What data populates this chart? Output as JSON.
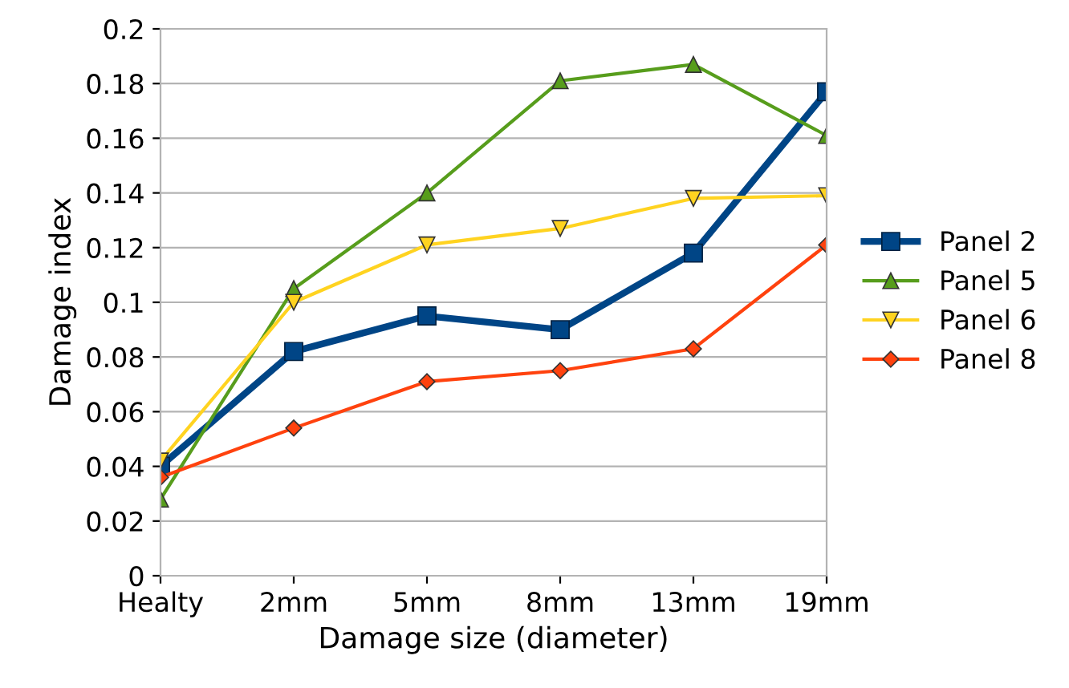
{
  "chart_data": {
    "type": "line",
    "xlabel": "Damage size (diameter)",
    "ylabel": "Damage index",
    "categories": [
      "Healty",
      "2mm",
      "5mm",
      "8mm",
      "13mm",
      "19mm"
    ],
    "series": [
      {
        "name": "Panel 2",
        "color": "#004586",
        "marker": "square",
        "values": [
          0.04,
          0.082,
          0.095,
          0.09,
          0.118,
          0.177
        ]
      },
      {
        "name": "Panel 5",
        "color": "#579d1c",
        "marker": "triangle",
        "values": [
          0.028,
          0.105,
          0.14,
          0.181,
          0.187,
          0.161
        ]
      },
      {
        "name": "Panel 6",
        "color": "#ffd320",
        "marker": "triangle_down",
        "values": [
          0.042,
          0.1,
          0.121,
          0.127,
          0.138,
          0.139
        ]
      },
      {
        "name": "Panel 8",
        "color": "#ff420e",
        "marker": "diamond",
        "values": [
          0.036,
          0.054,
          0.071,
          0.075,
          0.083,
          0.121
        ]
      }
    ],
    "ylim": [
      0,
      0.2
    ],
    "yticks": [
      0,
      0.02,
      0.04,
      0.06,
      0.08,
      0.1,
      0.12,
      0.14,
      0.16,
      0.18,
      0.2
    ],
    "grid": "y",
    "legend": "right"
  }
}
